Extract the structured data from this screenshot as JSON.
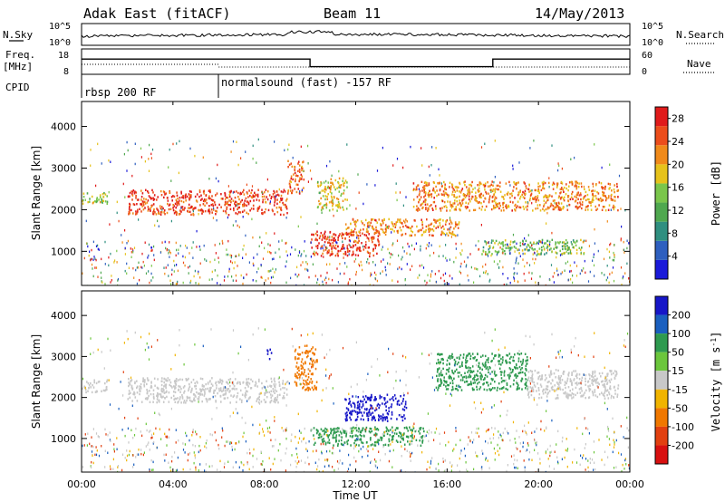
{
  "header": {
    "station": "Adak East (fitACF)",
    "beam": "Beam 11",
    "date": "14/May/2013"
  },
  "noise_panel": {
    "left_label": "N.Sky",
    "right_label": "N.Search",
    "left_ticks": [
      "10^5",
      "10^0"
    ],
    "right_ticks": [
      "10^5",
      "10^0"
    ]
  },
  "freq_panel": {
    "left_label_1": "Freq.",
    "left_label_2": "[MHz]",
    "left_ticks": [
      "18",
      "8"
    ],
    "right_label": "Nave",
    "right_ticks": [
      "60",
      "0"
    ]
  },
  "cpid_panel": {
    "label": "CPID",
    "segments": [
      "rbsp 200 RF",
      "normalsound (fast) -157 RF"
    ]
  },
  "power_panel": {
    "ylabel": "Slant Range [km]",
    "yticks": [
      "1000",
      "2000",
      "3000",
      "4000"
    ],
    "colorbar_label": "Power [dB]",
    "colorbar_ticks": [
      "4",
      "8",
      "12",
      "16",
      "20",
      "24",
      "28"
    ]
  },
  "velocity_panel": {
    "ylabel": "Slant Range [km]",
    "yticks": [
      "1000",
      "2000",
      "3000",
      "4000"
    ],
    "colorbar_label": "Velocity [m s",
    "colorbar_label_sup": "-1",
    "colorbar_label_end": "]",
    "colorbar_ticks": [
      "200",
      "100",
      "50",
      "15",
      "-15",
      "-50",
      "-100",
      "-200"
    ]
  },
  "xaxis": {
    "label": "Time UT",
    "ticks": [
      "00:00",
      "04:00",
      "08:00",
      "12:00",
      "16:00",
      "20:00",
      "00:00"
    ]
  },
  "chart_data": {
    "type": "heatmap",
    "title": "Adak East (fitACF)",
    "subtitle": "Beam 11",
    "date": "14/May/2013",
    "xlabel": "Time UT",
    "xlim_hours": [
      0,
      24
    ],
    "ylabel": "Slant Range [km]",
    "ylim_km": [
      180,
      4600
    ],
    "frequency_steps": [
      {
        "from_hour": 0,
        "to_hour": 10,
        "freq_mhz": 14
      },
      {
        "from_hour": 10,
        "to_hour": 18,
        "freq_mhz": 11
      },
      {
        "from_hour": 18,
        "to_hour": 24,
        "freq_mhz": 14
      }
    ],
    "cpid_segments": [
      {
        "name": "rbsp 200 RF",
        "from_hour": 0,
        "to_hour": 6
      },
      {
        "name": "normalsound (fast) -157 RF",
        "from_hour": 6,
        "to_hour": 24
      }
    ],
    "power_scale": {
      "unit": "dB",
      "min": 0,
      "max": 30,
      "ticks": [
        4,
        8,
        12,
        16,
        20,
        24,
        28
      ]
    },
    "velocity_scale": {
      "unit": "m s-1",
      "ticks": [
        200,
        100,
        50,
        15,
        -15,
        -50,
        -100,
        -200
      ]
    },
    "power_regions": [
      {
        "t0": 0.0,
        "t1": 1.1,
        "r0": 2150,
        "r1": 2450,
        "db": 16
      },
      {
        "t0": 2.0,
        "t1": 9.0,
        "r0": 1900,
        "r1": 2500,
        "db": 26
      },
      {
        "t0": 9.0,
        "t1": 9.7,
        "r0": 2400,
        "r1": 3200,
        "db": 24
      },
      {
        "t0": 10.3,
        "t1": 11.6,
        "r0": 2000,
        "r1": 2800,
        "db": 18
      },
      {
        "t0": 10.0,
        "t1": 13.0,
        "r0": 900,
        "r1": 1500,
        "db": 27
      },
      {
        "t0": 11.5,
        "t1": 16.5,
        "r0": 1400,
        "r1": 1800,
        "db": 22
      },
      {
        "t0": 14.5,
        "t1": 23.5,
        "r0": 2000,
        "r1": 2700,
        "db": 22
      },
      {
        "t0": 17.5,
        "t1": 22.0,
        "r0": 950,
        "r1": 1300,
        "db": 14
      }
    ],
    "velocity_regions": [
      {
        "t0": 11.5,
        "t1": 14.2,
        "r0": 1450,
        "r1": 2100,
        "v": 250
      },
      {
        "t0": 10.0,
        "t1": 15.0,
        "r0": 850,
        "r1": 1300,
        "v": 60
      },
      {
        "t0": 15.5,
        "t1": 19.5,
        "r0": 2200,
        "r1": 3100,
        "v": 40
      },
      {
        "t0": 9.3,
        "t1": 10.3,
        "r0": 2200,
        "r1": 3300,
        "v": -60
      },
      {
        "t0": 8.1,
        "t1": 8.3,
        "r0": 2950,
        "r1": 3200,
        "v": 250
      },
      {
        "t0": 2.0,
        "t1": 9.0,
        "r0": 1900,
        "r1": 2500,
        "v": 0
      },
      {
        "t0": 0.0,
        "t1": 1.1,
        "r0": 2150,
        "r1": 2450,
        "v": 0
      },
      {
        "t0": 19.5,
        "t1": 23.5,
        "r0": 2000,
        "r1": 2700,
        "v": 0
      }
    ]
  }
}
